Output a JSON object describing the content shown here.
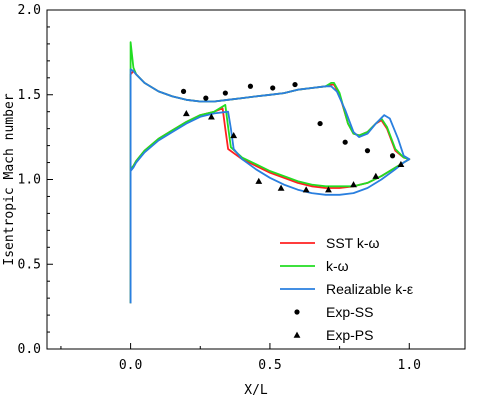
{
  "chart_data": {
    "type": "line",
    "xlabel": "X/L",
    "ylabel": "Isentropic Mach number",
    "xlim": [
      -0.3,
      1.2
    ],
    "ylim": [
      0.0,
      2.0
    ],
    "xticks": [
      "0.0",
      "0.5",
      "1.0"
    ],
    "xtick_values": [
      0.0,
      0.5,
      1.0
    ],
    "yticks": [
      "0.0",
      "0.5",
      "1.0",
      "1.5",
      "2.0"
    ],
    "ytick_values": [
      0.0,
      0.5,
      1.0,
      1.5,
      2.0
    ],
    "legend_position": "lower-right",
    "grid": false,
    "series": [
      {
        "name": "SST k-ω",
        "color": "#ff2020",
        "style": "line",
        "x": [
          0.0,
          0.0,
          0.01,
          0.02,
          0.05,
          0.1,
          0.15,
          0.2,
          0.25,
          0.3,
          0.35,
          0.4,
          0.45,
          0.5,
          0.55,
          0.6,
          0.65,
          0.7,
          0.72,
          0.73,
          0.75,
          0.78,
          0.8,
          0.82,
          0.85,
          0.88,
          0.9,
          0.92,
          0.95,
          0.98,
          1.0,
          0.98,
          0.95,
          0.9,
          0.85,
          0.8,
          0.75,
          0.7,
          0.65,
          0.6,
          0.55,
          0.5,
          0.45,
          0.4,
          0.35,
          0.34,
          0.33,
          0.3,
          0.25,
          0.2,
          0.15,
          0.1,
          0.05,
          0.02,
          0.01,
          0.0,
          0.0
        ],
        "y": [
          0.27,
          1.62,
          1.64,
          1.62,
          1.57,
          1.52,
          1.49,
          1.47,
          1.46,
          1.46,
          1.47,
          1.48,
          1.49,
          1.5,
          1.51,
          1.53,
          1.54,
          1.55,
          1.56,
          1.56,
          1.5,
          1.33,
          1.27,
          1.26,
          1.28,
          1.33,
          1.35,
          1.3,
          1.17,
          1.13,
          1.12,
          1.1,
          1.07,
          1.02,
          0.98,
          0.96,
          0.95,
          0.95,
          0.96,
          0.98,
          1.01,
          1.04,
          1.08,
          1.12,
          1.18,
          1.3,
          1.42,
          1.4,
          1.38,
          1.34,
          1.29,
          1.24,
          1.17,
          1.11,
          1.08,
          1.06,
          0.27
        ]
      },
      {
        "name": "k-ω",
        "color": "#22dd22",
        "style": "line",
        "x": [
          0.0,
          0.0,
          0.01,
          0.02,
          0.05,
          0.1,
          0.15,
          0.2,
          0.25,
          0.3,
          0.35,
          0.4,
          0.45,
          0.5,
          0.55,
          0.6,
          0.65,
          0.7,
          0.72,
          0.73,
          0.75,
          0.78,
          0.8,
          0.82,
          0.85,
          0.88,
          0.9,
          0.92,
          0.95,
          0.98,
          1.0,
          0.98,
          0.95,
          0.9,
          0.85,
          0.8,
          0.75,
          0.7,
          0.65,
          0.6,
          0.55,
          0.5,
          0.45,
          0.4,
          0.36,
          0.35,
          0.34,
          0.3,
          0.25,
          0.2,
          0.15,
          0.1,
          0.05,
          0.02,
          0.01,
          0.0,
          0.0
        ],
        "y": [
          0.27,
          1.81,
          1.66,
          1.62,
          1.57,
          1.52,
          1.49,
          1.47,
          1.46,
          1.46,
          1.47,
          1.48,
          1.49,
          1.5,
          1.51,
          1.53,
          1.54,
          1.55,
          1.57,
          1.57,
          1.51,
          1.33,
          1.27,
          1.26,
          1.28,
          1.33,
          1.36,
          1.31,
          1.18,
          1.13,
          1.12,
          1.1,
          1.07,
          1.02,
          0.98,
          0.96,
          0.96,
          0.96,
          0.97,
          0.99,
          1.02,
          1.05,
          1.09,
          1.13,
          1.19,
          1.31,
          1.44,
          1.4,
          1.38,
          1.34,
          1.29,
          1.24,
          1.17,
          1.11,
          1.08,
          1.06,
          0.27
        ]
      },
      {
        "name": "Realizable k-ε",
        "color": "#2a7fdf",
        "style": "line",
        "x": [
          0.0,
          0.0,
          0.01,
          0.02,
          0.05,
          0.1,
          0.15,
          0.2,
          0.25,
          0.3,
          0.35,
          0.4,
          0.45,
          0.5,
          0.55,
          0.6,
          0.65,
          0.7,
          0.72,
          0.74,
          0.77,
          0.8,
          0.82,
          0.85,
          0.88,
          0.91,
          0.93,
          0.96,
          0.98,
          1.0,
          0.98,
          0.95,
          0.9,
          0.85,
          0.8,
          0.75,
          0.7,
          0.65,
          0.6,
          0.55,
          0.5,
          0.45,
          0.4,
          0.37,
          0.36,
          0.35,
          0.3,
          0.25,
          0.2,
          0.15,
          0.1,
          0.05,
          0.02,
          0.01,
          0.0,
          0.0
        ],
        "y": [
          0.27,
          1.65,
          1.64,
          1.62,
          1.57,
          1.52,
          1.49,
          1.47,
          1.46,
          1.46,
          1.47,
          1.48,
          1.49,
          1.5,
          1.51,
          1.53,
          1.54,
          1.55,
          1.55,
          1.52,
          1.41,
          1.28,
          1.25,
          1.27,
          1.33,
          1.38,
          1.36,
          1.24,
          1.14,
          1.12,
          1.1,
          1.06,
          1.0,
          0.95,
          0.92,
          0.91,
          0.91,
          0.92,
          0.94,
          0.97,
          1.01,
          1.06,
          1.12,
          1.18,
          1.3,
          1.4,
          1.39,
          1.37,
          1.33,
          1.28,
          1.23,
          1.16,
          1.1,
          1.07,
          1.05,
          0.27
        ]
      },
      {
        "name": "Exp-SS",
        "color": "#000000",
        "style": "marker-circle",
        "x": [
          0.19,
          0.27,
          0.34,
          0.43,
          0.51,
          0.59,
          0.68,
          0.77,
          0.85,
          0.94
        ],
        "y": [
          1.52,
          1.48,
          1.51,
          1.55,
          1.54,
          1.56,
          1.33,
          1.22,
          1.17,
          1.14
        ]
      },
      {
        "name": "Exp-PS",
        "color": "#000000",
        "style": "marker-triangle",
        "x": [
          0.2,
          0.29,
          0.37,
          0.46,
          0.54,
          0.63,
          0.71,
          0.8,
          0.88,
          0.97
        ],
        "y": [
          1.39,
          1.37,
          1.26,
          0.99,
          0.95,
          0.94,
          0.94,
          0.97,
          1.02,
          1.09
        ]
      }
    ]
  }
}
